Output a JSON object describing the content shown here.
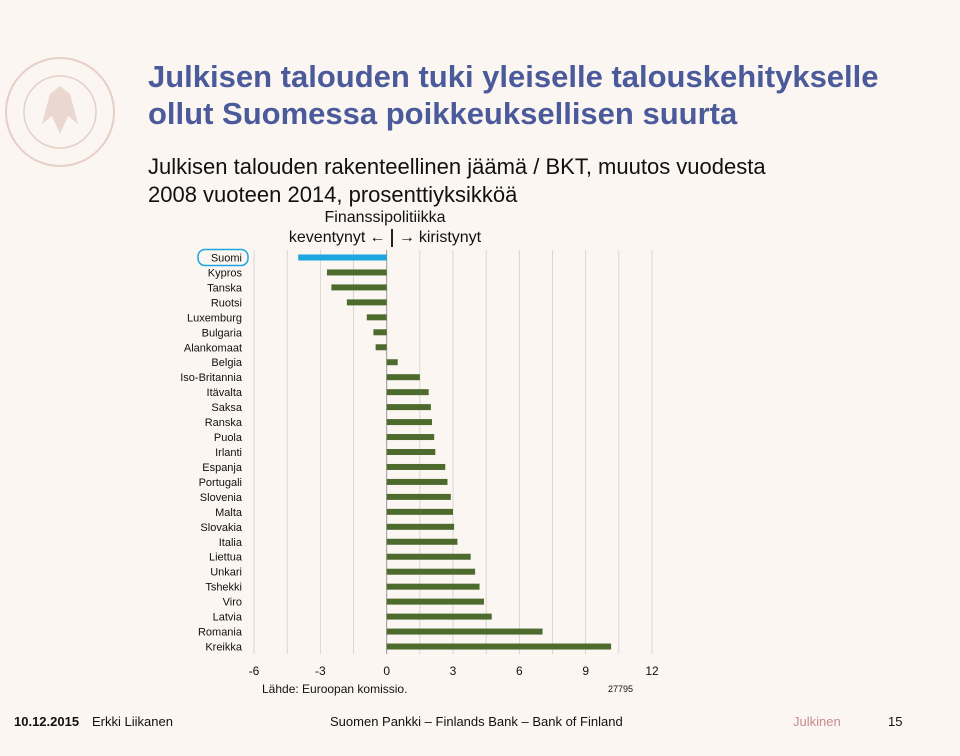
{
  "title_lines": [
    "Julkisen talouden tuki yleiselle talouskehitykselle",
    "ollut Suomessa poikkeuksellisen suurta"
  ],
  "subtitle_lines": [
    "Julkisen talouden rakenteellinen jäämä / BKT, muutos vuodesta",
    "2008 vuoteen 2014, prosenttiyksikköä"
  ],
  "policy": {
    "title": "Finanssipolitiikka",
    "left": "keventynyt",
    "right": "kiristynyt",
    "left_arrow": "←",
    "right_arrow": "→"
  },
  "source": "Lähde: Euroopan komissio.",
  "code": "27795",
  "footer": {
    "date": "10.12.2015",
    "author": "Erkki Liikanen",
    "org": "Suomen Pankki – Finlands Bank – Bank of Finland",
    "classification": "Julkinen",
    "page": "15"
  },
  "colors": {
    "title": "#4a5a9a",
    "bar": "#4e6b2e",
    "highlight": "#1ba6df",
    "grid": "#cfcfcf"
  },
  "chart_data": {
    "type": "bar",
    "orientation": "horizontal",
    "categories": [
      "Suomi",
      "Kypros",
      "Tanska",
      "Ruotsi",
      "Luxemburg",
      "Bulgaria",
      "Alankomaat",
      "Belgia",
      "Iso-Britannia",
      "Itävalta",
      "Saksa",
      "Ranska",
      "Puola",
      "Irlanti",
      "Espanja",
      "Portugali",
      "Slovenia",
      "Malta",
      "Slovakia",
      "Italia",
      "Liettua",
      "Unkari",
      "Tshekki",
      "Viro",
      "Latvia",
      "Romania",
      "Kreikka"
    ],
    "values": [
      -4.0,
      -2.7,
      -2.5,
      -1.8,
      -0.9,
      -0.6,
      -0.5,
      0.5,
      1.5,
      1.9,
      2.0,
      2.05,
      2.15,
      2.2,
      2.65,
      2.75,
      2.9,
      3.0,
      3.05,
      3.2,
      3.8,
      4.0,
      4.2,
      4.4,
      4.75,
      7.05,
      10.15
    ],
    "highlight": "Suomi",
    "x_ticks": [
      -6,
      -3,
      0,
      3,
      6,
      9,
      12
    ],
    "xlim": [
      -6,
      12
    ],
    "xlabel": "",
    "ylabel": "",
    "grid": true
  }
}
